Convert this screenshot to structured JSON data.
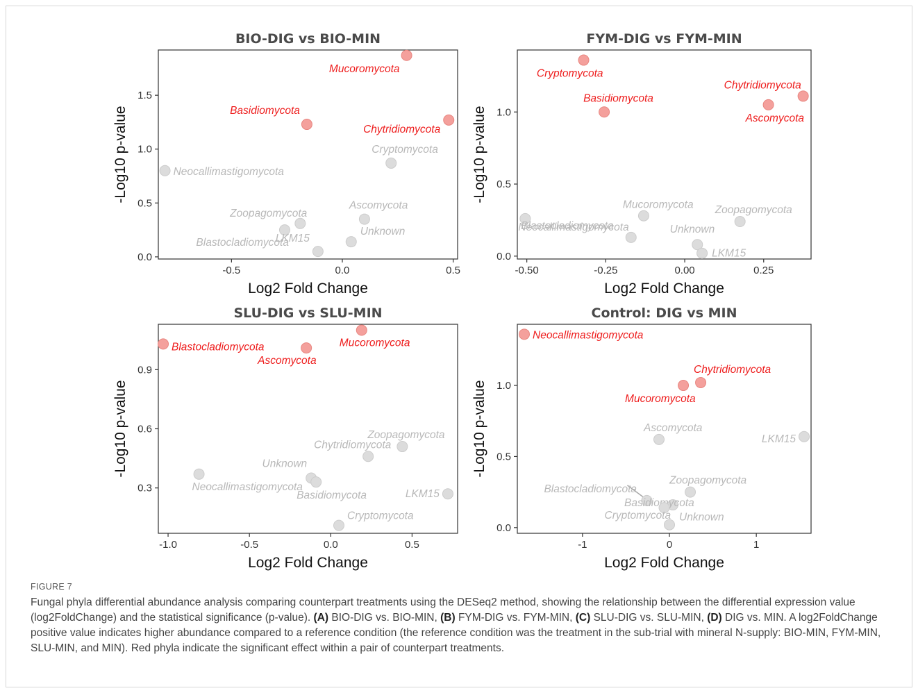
{
  "chart_data": [
    {
      "type": "scatter",
      "title": "BIO-DIG vs BIO-MIN",
      "xlabel": "Log2 Fold Change",
      "ylabel": "-Log10 p-value",
      "xlim": [
        -0.83,
        0.52
      ],
      "ylim": [
        -0.02,
        1.92
      ],
      "xticks": [
        -0.5,
        0.0,
        0.5
      ],
      "xtick_labels": [
        "-0.5",
        "0.0",
        "0.5"
      ],
      "yticks": [
        0.0,
        0.5,
        1.0,
        1.5
      ],
      "ytick_labels": [
        "0.0",
        "0.5",
        "1.0",
        "1.5"
      ],
      "points": [
        {
          "label": "Mucoromycota",
          "x": 0.29,
          "y": 1.87,
          "significant": true
        },
        {
          "label": "Basidiomycota",
          "x": -0.16,
          "y": 1.23,
          "significant": true
        },
        {
          "label": "Chytridiomycota",
          "x": 0.48,
          "y": 1.27,
          "significant": true
        },
        {
          "label": "Cryptomycota",
          "x": 0.22,
          "y": 0.87,
          "significant": false
        },
        {
          "label": "Neocallimastigomycota",
          "x": -0.8,
          "y": 0.8,
          "significant": false
        },
        {
          "label": "Zoopagomycota",
          "x": -0.19,
          "y": 0.31,
          "significant": false
        },
        {
          "label": "Ascomycota",
          "x": 0.1,
          "y": 0.35,
          "significant": false
        },
        {
          "label": "Unknown",
          "x": 0.04,
          "y": 0.14,
          "significant": false
        },
        {
          "label": "Blastocladiomycota",
          "x": -0.26,
          "y": 0.25,
          "significant": false
        },
        {
          "label": "LKM15",
          "x": -0.11,
          "y": 0.05,
          "significant": false
        }
      ]
    },
    {
      "type": "scatter",
      "title": "FYM-DIG  vs FYM-MIN",
      "xlabel": "Log2 Fold Change",
      "ylabel": "-Log10 p-value",
      "xlim": [
        -0.53,
        0.4
      ],
      "ylim": [
        -0.02,
        1.43
      ],
      "xticks": [
        -0.5,
        -0.25,
        0.0,
        0.25
      ],
      "xtick_labels": [
        "-0.50",
        "-0.25",
        "0.00",
        "0.25"
      ],
      "yticks": [
        0.0,
        0.5,
        1.0
      ],
      "ytick_labels": [
        "0.0",
        "0.5",
        "1.0"
      ],
      "points": [
        {
          "label": "Cryptomycota",
          "x": -0.32,
          "y": 1.36,
          "significant": true
        },
        {
          "label": "Basidiomycota",
          "x": -0.255,
          "y": 1.0,
          "significant": true
        },
        {
          "label": "Chytridiomycota",
          "x": 0.375,
          "y": 1.11,
          "significant": true
        },
        {
          "label": "Ascomycota",
          "x": 0.265,
          "y": 1.05,
          "significant": true
        },
        {
          "label": "Mucoromycota",
          "x": -0.13,
          "y": 0.28,
          "significant": false
        },
        {
          "label": "Zoopagomycota",
          "x": 0.175,
          "y": 0.24,
          "significant": false
        },
        {
          "label": "Neocallimastigomycota",
          "x": -0.505,
          "y": 0.26,
          "significant": false
        },
        {
          "label": "Unknown",
          "x": 0.04,
          "y": 0.08,
          "significant": false
        },
        {
          "label": "Blastocladiomycota",
          "x": -0.17,
          "y": 0.13,
          "significant": false
        },
        {
          "label": "LKM15",
          "x": 0.055,
          "y": 0.02,
          "significant": false
        }
      ]
    },
    {
      "type": "scatter",
      "title": "SLU-DIG vs SLU-MIN",
      "xlabel": "Log2 Fold Change",
      "ylabel": "-Log10 p-value",
      "xlim": [
        -1.06,
        0.78
      ],
      "ylim": [
        0.07,
        1.13
      ],
      "xticks": [
        -1.0,
        -0.5,
        0.0,
        0.5
      ],
      "xtick_labels": [
        "-1.0",
        "-0.5",
        "0.0",
        "0.5"
      ],
      "yticks": [
        0.3,
        0.6,
        0.9
      ],
      "ytick_labels": [
        "0.3",
        "0.6",
        "0.9"
      ],
      "points": [
        {
          "label": "Blastocladiomycota",
          "x": -1.03,
          "y": 1.03,
          "significant": true
        },
        {
          "label": "Ascomycota",
          "x": -0.15,
          "y": 1.01,
          "significant": true
        },
        {
          "label": "Mucoromycota",
          "x": 0.19,
          "y": 1.1,
          "significant": true
        },
        {
          "label": "Zoopagomycota",
          "x": 0.44,
          "y": 0.51,
          "significant": false
        },
        {
          "label": "Chytridiomycota",
          "x": 0.23,
          "y": 0.46,
          "significant": false
        },
        {
          "label": "Unknown",
          "x": -0.12,
          "y": 0.35,
          "significant": false
        },
        {
          "label": "Basidiomycota",
          "x": -0.09,
          "y": 0.33,
          "significant": false
        },
        {
          "label": "Neocallimastigomycota",
          "x": -0.81,
          "y": 0.37,
          "significant": false
        },
        {
          "label": "LKM15",
          "x": 0.72,
          "y": 0.27,
          "significant": false
        },
        {
          "label": "Cryptomycota",
          "x": 0.05,
          "y": 0.11,
          "significant": false
        }
      ]
    },
    {
      "type": "scatter",
      "title": "Control: DIG vs MIN",
      "xlabel": "Log2 Fold Change",
      "ylabel": "-Log10 p-value",
      "xlim": [
        -1.75,
        1.63
      ],
      "ylim": [
        -0.04,
        1.43
      ],
      "xticks": [
        -1,
        0,
        1
      ],
      "xtick_labels": [
        "-1",
        "0",
        "1"
      ],
      "yticks": [
        0.0,
        0.5,
        1.0
      ],
      "ytick_labels": [
        "0.0",
        "0.5",
        "1.0"
      ],
      "points": [
        {
          "label": "Neocallimastigomycota",
          "x": -1.67,
          "y": 1.36,
          "significant": true
        },
        {
          "label": "Chytridiomycota",
          "x": 0.36,
          "y": 1.02,
          "significant": true
        },
        {
          "label": "Mucoromycota",
          "x": 0.16,
          "y": 1.0,
          "significant": true
        },
        {
          "label": "Ascomycota",
          "x": -0.12,
          "y": 0.62,
          "significant": false
        },
        {
          "label": "LKM15",
          "x": 1.55,
          "y": 0.64,
          "significant": false
        },
        {
          "label": "Blastocladiomycota",
          "x": -0.26,
          "y": 0.19,
          "significant": false
        },
        {
          "label": "Zoopagomycota",
          "x": 0.24,
          "y": 0.25,
          "significant": false
        },
        {
          "label": "Basidiomycota",
          "x": 0.04,
          "y": 0.16,
          "significant": false
        },
        {
          "label": "Cryptomycota",
          "x": -0.06,
          "y": 0.14,
          "significant": false
        },
        {
          "label": "Unknown",
          "x": 0.0,
          "y": 0.02,
          "significant": false
        }
      ]
    }
  ],
  "colors": {
    "significant_point": "#f4a09c",
    "significant_point_stroke": "#e88680",
    "significant_label": "#ee1c1c",
    "nonsignificant_point": "#dcdcdc",
    "nonsignificant_point_stroke": "#cccccc",
    "nonsignificant_label": "#b8b8b8"
  },
  "caption": {
    "label": "FIGURE 7",
    "intro": "Fungal phyla differential abundance analysis comparing counterpart treatments using the DESeq2 method, showing the relationship between the differential expression value (log2FoldChange) and the statistical significance (p-value).",
    "panel_a_key": "(A)",
    "panel_a_text": "BIO-DIG vs. BIO-MIN,",
    "panel_b_key": "(B)",
    "panel_b_text": "FYM-DIG vs. FYM-MIN,",
    "panel_c_key": "(C)",
    "panel_c_text": "SLU-DIG vs. SLU-MIN,",
    "panel_d_key": "(D)",
    "panel_d_text": "DIG vs. MIN.",
    "outro": "A log2FoldChange positive value indicates higher abundance compared to a reference condition (the reference condition was the treatment in the sub-trial with mineral N-supply: BIO-MIN, FYM-MIN, SLU-MIN, and MIN). Red phyla indicate the significant effect within a pair of counterpart treatments."
  }
}
